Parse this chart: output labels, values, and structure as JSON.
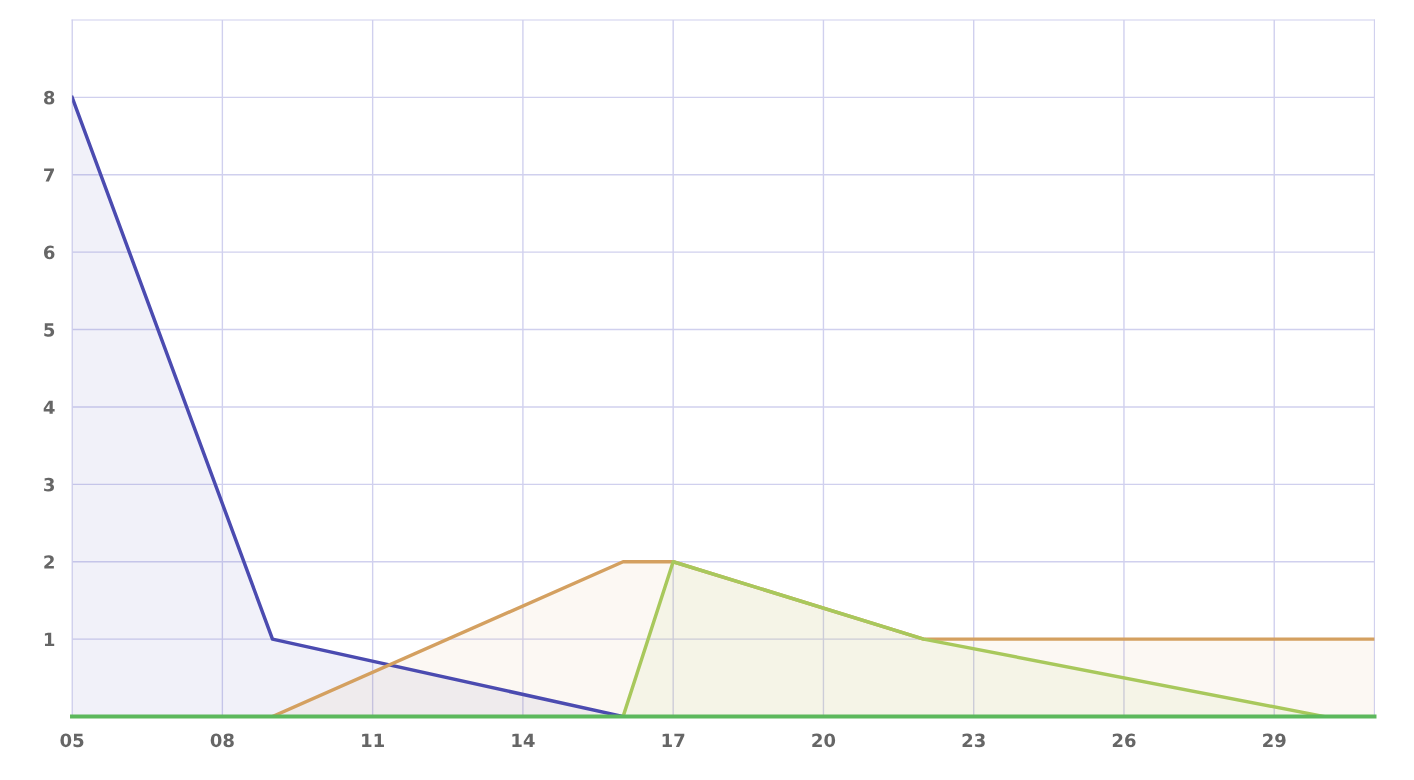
{
  "chart_data": {
    "type": "area",
    "series": [
      {
        "color": "#4b4bb0",
        "x": [
          5,
          9,
          16
        ],
        "values": [
          8,
          1,
          0
        ]
      },
      {
        "color": "#d4a060",
        "x": [
          9,
          16,
          17,
          22,
          31
        ],
        "values": [
          0,
          2,
          2,
          1,
          1
        ]
      },
      {
        "color": "#a8c85c",
        "x": [
          16,
          17,
          22,
          30
        ],
        "values": [
          0,
          2,
          1,
          0
        ]
      },
      {
        "type": "line",
        "color": "#5cb85c",
        "x": [
          5,
          31
        ],
        "values": [
          0,
          0
        ]
      }
    ],
    "xlim": [
      5,
      31
    ],
    "xticks": [
      {
        "value": 5,
        "label": "05"
      },
      {
        "value": 8,
        "label": "08"
      },
      11,
      14,
      17,
      20,
      23,
      26,
      29
    ],
    "ylim": [
      0,
      9
    ],
    "yticks": [
      1,
      2,
      3,
      4,
      5,
      6,
      7,
      8
    ],
    "grid": true,
    "legend": false,
    "marker": "none",
    "line_style": "solid"
  }
}
